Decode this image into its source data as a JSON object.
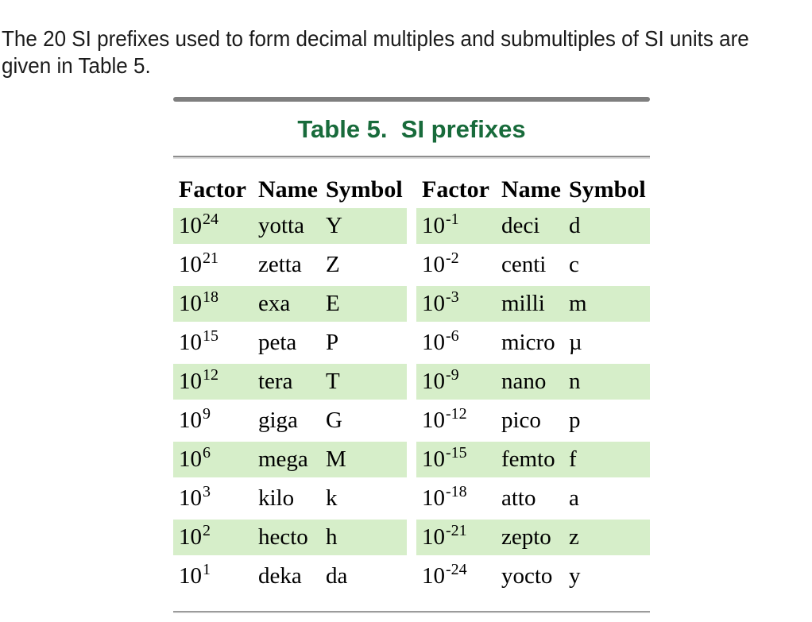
{
  "intro": {
    "line1": "The 20 SI prefixes used to form decimal multiples and submultiples of SI units are",
    "line2": "given in Table 5."
  },
  "table": {
    "title": "Table 5.  SI prefixes",
    "columns": [
      "Factor",
      "Name",
      "Symbol"
    ],
    "left_rows": [
      {
        "base": "10",
        "exp": "24",
        "name": "yotta",
        "symbol": "Y",
        "highlight": true
      },
      {
        "base": "10",
        "exp": "21",
        "name": "zetta",
        "symbol": "Z",
        "highlight": false
      },
      {
        "base": "10",
        "exp": "18",
        "name": "exa",
        "symbol": "E",
        "highlight": true
      },
      {
        "base": "10",
        "exp": "15",
        "name": "peta",
        "symbol": "P",
        "highlight": false
      },
      {
        "base": "10",
        "exp": "12",
        "name": "tera",
        "symbol": "T",
        "highlight": true
      },
      {
        "base": "10",
        "exp": "9",
        "name": "giga",
        "symbol": "G",
        "highlight": false
      },
      {
        "base": "10",
        "exp": "6",
        "name": "mega",
        "symbol": "M",
        "highlight": true
      },
      {
        "base": "10",
        "exp": "3",
        "name": "kilo",
        "symbol": "k",
        "highlight": false
      },
      {
        "base": "10",
        "exp": "2",
        "name": "hecto",
        "symbol": "h",
        "highlight": true
      },
      {
        "base": "10",
        "exp": "1",
        "name": "deka",
        "symbol": "da",
        "highlight": false
      }
    ],
    "right_rows": [
      {
        "base": "10",
        "exp": "-1",
        "name": "deci",
        "symbol": "d",
        "highlight": true
      },
      {
        "base": "10",
        "exp": "-2",
        "name": "centi",
        "symbol": "c",
        "highlight": false
      },
      {
        "base": "10",
        "exp": "-3",
        "name": "milli",
        "symbol": "m",
        "highlight": true
      },
      {
        "base": "10",
        "exp": "-6",
        "name": "micro",
        "symbol": "µ",
        "highlight": false
      },
      {
        "base": "10",
        "exp": "-9",
        "name": "nano",
        "symbol": "n",
        "highlight": true
      },
      {
        "base": "10",
        "exp": "-12",
        "name": "pico",
        "symbol": "p",
        "highlight": false
      },
      {
        "base": "10",
        "exp": "-15",
        "name": "femto",
        "symbol": "f",
        "highlight": true
      },
      {
        "base": "10",
        "exp": "-18",
        "name": "atto",
        "symbol": "a",
        "highlight": false
      },
      {
        "base": "10",
        "exp": "-21",
        "name": "zepto",
        "symbol": "z",
        "highlight": true
      },
      {
        "base": "10",
        "exp": "-24",
        "name": "yocto",
        "symbol": "y",
        "highlight": false
      }
    ]
  },
  "colors": {
    "highlight_green": "#d6eec9",
    "title_green": "#186b3b",
    "rule_gray": "#7f7f7f"
  }
}
